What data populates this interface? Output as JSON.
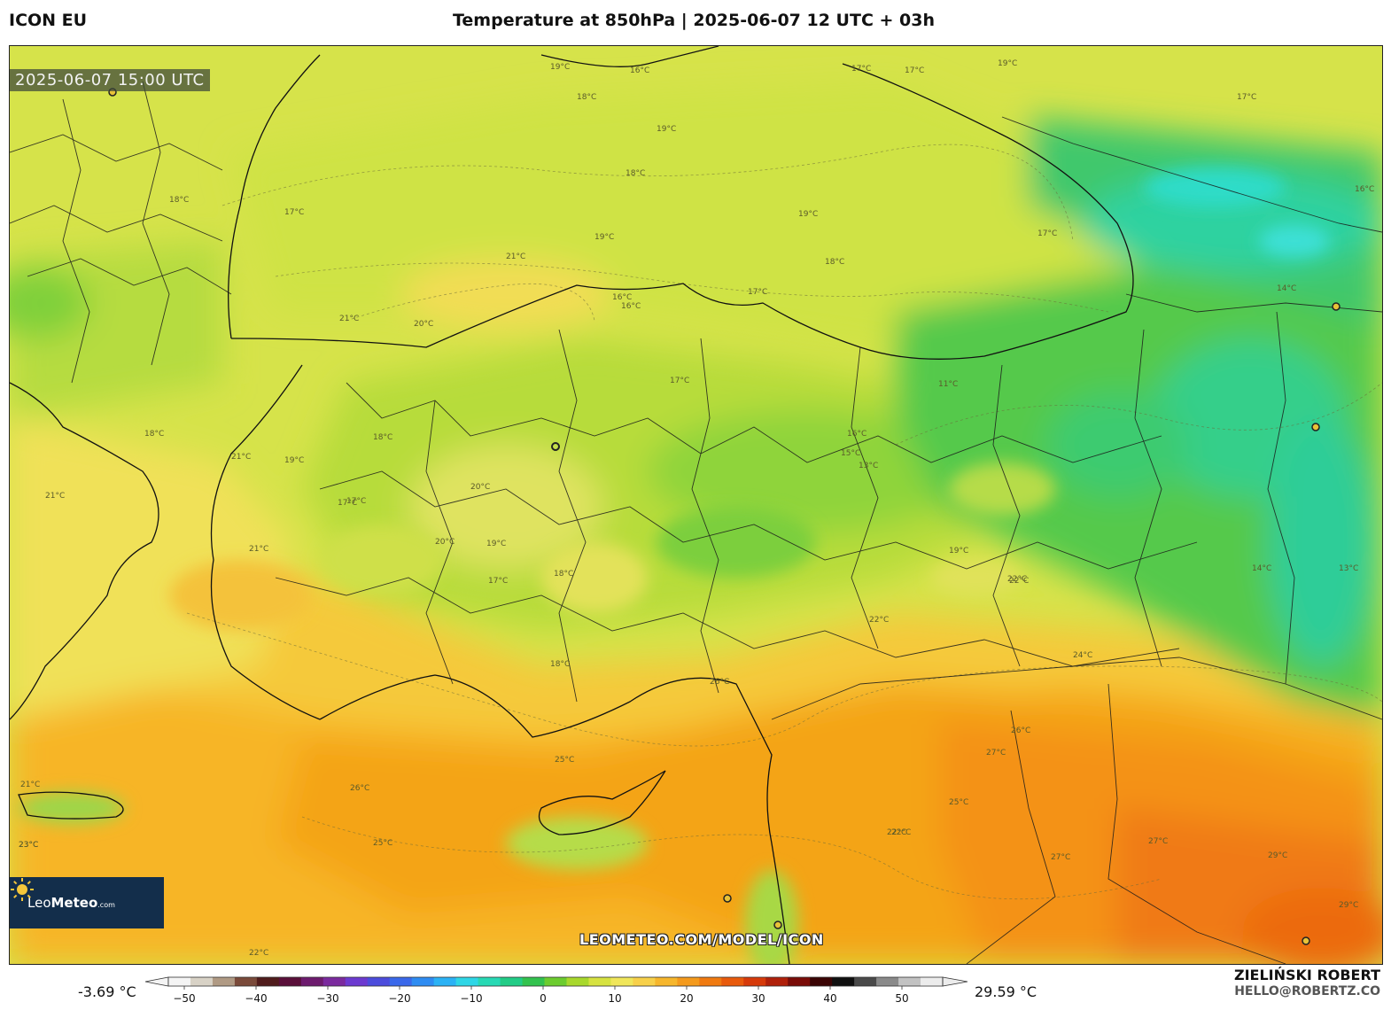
{
  "header": {
    "model": "ICON EU",
    "title": "Temperature at 850hPa | 2025-06-07 12 UTC + 03h"
  },
  "map": {
    "valid_time": "2025-06-07 15:00 UTC",
    "watermark": "LEOMETEO.COM/MODEL/ICON",
    "contour_labels": [
      "19°C",
      "18°C",
      "19°C",
      "17°C",
      "16°C",
      "17°C",
      "19°C",
      "18°C",
      "19°C",
      "17°C",
      "18°C",
      "19°C",
      "17°C",
      "17°C",
      "21°C",
      "21°C",
      "20°C",
      "16°C",
      "17°C",
      "18°C",
      "17°C",
      "16°C",
      "11°C",
      "14°C",
      "15°C",
      "13°C",
      "18°C",
      "21°C",
      "20°C",
      "19°C",
      "20°C",
      "19°C",
      "17°C",
      "18°C",
      "17°C",
      "19°C",
      "22°C",
      "18°C",
      "22°C",
      "21°C",
      "24°C",
      "22°C",
      "26°C",
      "25°C",
      "26°C",
      "25°C",
      "23°C",
      "22°C",
      "27°C",
      "26°C",
      "25°C",
      "22°C",
      "27°C",
      "27°C",
      "29°C",
      "29°C",
      "21°C",
      "23°C",
      "21°C",
      "22°C",
      "14°C",
      "13°C",
      "16°C",
      "17°C",
      "18°C",
      "16°C"
    ]
  },
  "logo": {
    "brand_regular": "Leo",
    "brand_bold": "Meteo",
    "brand_suffix": ".com"
  },
  "colorbar": {
    "min_label": "-3.69 °C",
    "max_label": "29.59 °C",
    "ticks": [
      "−50",
      "−40",
      "−30",
      "−20",
      "−10",
      "0",
      "10",
      "20",
      "30",
      "40",
      "50"
    ],
    "colors": [
      "#f4f4f4",
      "#d8d2c6",
      "#b09a84",
      "#7a4a3a",
      "#501c1c",
      "#5a0f3a",
      "#6d1b6e",
      "#7b2a9e",
      "#6c3ad0",
      "#4c4cdc",
      "#3a68ea",
      "#2e8cf2",
      "#2bb2f5",
      "#2ed6e6",
      "#27d9b4",
      "#22cc86",
      "#32c24e",
      "#6ccc2e",
      "#a8d82c",
      "#d6e240",
      "#f0e65a",
      "#f7d04a",
      "#f6b62c",
      "#f49a1c",
      "#f07a10",
      "#e85a0c",
      "#d63a0a",
      "#b0200a",
      "#7a0c08",
      "#3a0404",
      "#101010",
      "#4a4a4a",
      "#8a8a8a",
      "#c2c2c2",
      "#ececec"
    ]
  },
  "credits": {
    "author": "ZIELIŃSKI ROBERT",
    "email": "HELLO@ROBERTZ.CO"
  }
}
